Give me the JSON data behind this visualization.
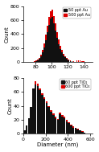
{
  "plot1": {
    "ylabel": "Count",
    "xlabel": "",
    "xlim": [
      65,
      150
    ],
    "ylim": [
      0,
      800
    ],
    "yticks": [
      0,
      200,
      400,
      600,
      800
    ],
    "xticks": [
      80,
      100,
      120,
      140
    ],
    "legend": [
      "50 ppt Au",
      "500 ppt Au"
    ],
    "colors": [
      "#111111",
      "#dd0000"
    ],
    "bin_edges": [
      70,
      72,
      74,
      76,
      78,
      80,
      82,
      84,
      86,
      88,
      90,
      92,
      94,
      96,
      98,
      100,
      102,
      104,
      106,
      108,
      110,
      112,
      114,
      116,
      118,
      120,
      122,
      124,
      126,
      128,
      130,
      132,
      134,
      136,
      138,
      140,
      142,
      144,
      146
    ],
    "counts_black": [
      0,
      2,
      3,
      5,
      8,
      15,
      25,
      45,
      80,
      140,
      210,
      310,
      430,
      530,
      620,
      640,
      550,
      450,
      350,
      260,
      190,
      140,
      100,
      70,
      45,
      30,
      18,
      12,
      8,
      5,
      3,
      2,
      2,
      1,
      1,
      0,
      0,
      0
    ],
    "counts_red": [
      0,
      3,
      5,
      8,
      12,
      22,
      35,
      60,
      110,
      180,
      270,
      390,
      520,
      640,
      730,
      750,
      660,
      550,
      430,
      320,
      235,
      170,
      120,
      85,
      55,
      35,
      22,
      15,
      10,
      7,
      20,
      25,
      20,
      15,
      10,
      8,
      5,
      2
    ],
    "bin_width": 2
  },
  "plot2": {
    "ylabel": "Count",
    "xlabel": "Diameter (nm)",
    "xlim": [
      0,
      620
    ],
    "ylim": [
      0,
      80
    ],
    "yticks": [
      0,
      20,
      40,
      60,
      80
    ],
    "xticks": [
      0,
      200,
      400,
      600
    ],
    "legend": [
      "60 ppt TiO₂",
      "600 ppt TiO₂"
    ],
    "colors": [
      "#111111",
      "#dd0000"
    ],
    "bin_edges": [
      0,
      20,
      40,
      60,
      80,
      100,
      120,
      140,
      160,
      180,
      200,
      220,
      240,
      260,
      280,
      300,
      320,
      340,
      360,
      380,
      400,
      420,
      440,
      460,
      480,
      500,
      520,
      540,
      560,
      580,
      600
    ],
    "counts_black": [
      5,
      12,
      22,
      38,
      65,
      70,
      68,
      62,
      56,
      50,
      44,
      38,
      32,
      27,
      22,
      20,
      28,
      25,
      22,
      18,
      15,
      12,
      9,
      8,
      6,
      5,
      3,
      2,
      1,
      1
    ],
    "counts_red": [
      4,
      10,
      18,
      32,
      55,
      75,
      72,
      65,
      58,
      52,
      46,
      40,
      34,
      29,
      24,
      21,
      30,
      27,
      24,
      20,
      17,
      13,
      11,
      9,
      7,
      5,
      4,
      2,
      1,
      1
    ],
    "bin_width": 20
  }
}
